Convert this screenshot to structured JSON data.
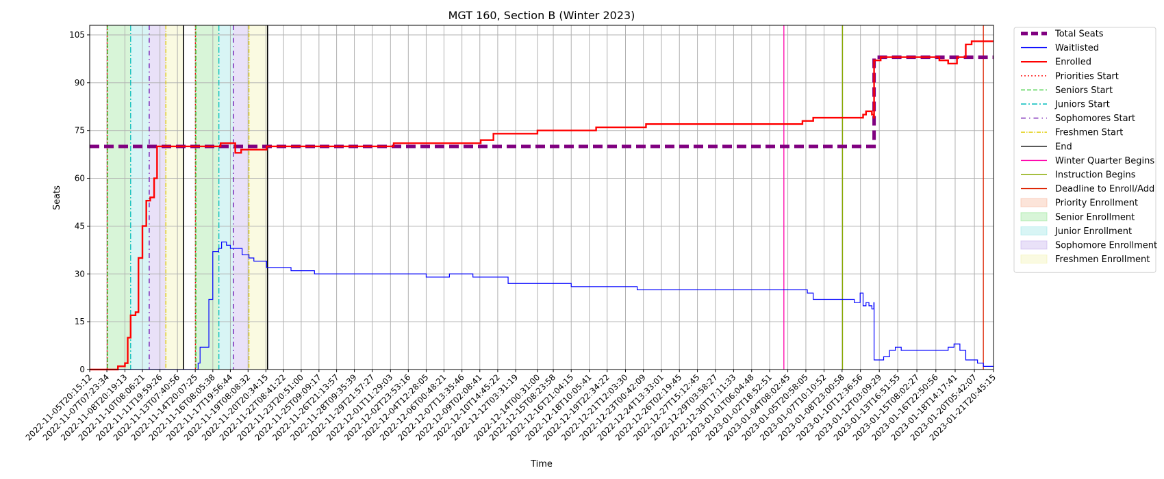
{
  "chart_data": {
    "type": "line",
    "title": "MGT 160, Section B (Winter 2023)",
    "xlabel": "Time",
    "ylabel": "Seats",
    "x_type": "datetime",
    "xlim": [
      "2022-11-05T20:15:12",
      "2023-01-21T20:45:15"
    ],
    "ylim": [
      0,
      108
    ],
    "yticks": [
      0,
      15,
      30,
      45,
      60,
      75,
      90,
      105
    ],
    "xticks": [
      "2022-11-05T20:15:12",
      "2022-11-07T07:23:34",
      "2022-11-08T20:19:13",
      "2022-11-10T08:06:21",
      "2022-11-11T19:59:26",
      "2022-11-13T07:40:56",
      "2022-11-14T20:07:25",
      "2022-11-16T08:05:38",
      "2022-11-17T19:56:44",
      "2022-11-19T08:08:32",
      "2022-11-20T20:34:15",
      "2022-11-22T08:41:22",
      "2022-11-23T20:51:00",
      "2022-11-25T09:09:17",
      "2022-11-26T21:13:57",
      "2022-11-28T09:35:39",
      "2022-11-29T21:57:27",
      "2022-12-01T11:29:03",
      "2022-12-02T23:53:16",
      "2022-12-04T12:28:05",
      "2022-12-06T00:48:21",
      "2022-12-07T13:35:46",
      "2022-12-09T02:08:41",
      "2022-12-10T14:45:22",
      "2022-12-12T03:31:19",
      "2022-12-14T00:31:00",
      "2022-12-15T08:23:58",
      "2022-12-16T21:04:15",
      "2022-12-18T10:05:41",
      "2022-12-19T22:34:22",
      "2022-12-21T12:03:30",
      "2022-12-23T00:42:09",
      "2022-12-24T13:33:01",
      "2022-12-26T02:19:45",
      "2022-12-27T15:12:45",
      "2022-12-29T03:58:27",
      "2022-12-30T17:11:33",
      "2023-01-01T06:04:48",
      "2023-01-02T18:52:51",
      "2023-01-04T08:02:45",
      "2023-01-05T20:58:05",
      "2023-01-07T10:10:52",
      "2023-01-08T23:00:58",
      "2023-01-10T12:36:56",
      "2023-01-12T03:09:29",
      "2023-01-13T16:51:55",
      "2023-01-15T08:02:27",
      "2023-01-16T22:50:56",
      "2023-01-18T14:17:41",
      "2023-01-20T05:42:07",
      "2023-01-21T20:45:15"
    ],
    "grid": true,
    "legend_position": "outside-right",
    "series": [
      {
        "name": "Total Seats",
        "color": "#800080",
        "style": "dashed-thick",
        "points": [
          [
            "2022-11-05T20:15:12",
            70
          ],
          [
            "2023-01-11T16:00:00",
            70
          ],
          [
            "2023-01-11T16:30:00",
            98
          ],
          [
            "2023-01-21T20:45:15",
            98
          ]
        ]
      },
      {
        "name": "Waitlisted",
        "color": "#0000ff",
        "style": "solid-thin",
        "points": [
          [
            "2022-11-05T20:15:12",
            0
          ],
          [
            "2022-11-14T20:07:25",
            0
          ],
          [
            "2022-11-15T02:00:00",
            2
          ],
          [
            "2022-11-15T06:00:00",
            7
          ],
          [
            "2022-11-15T18:00:00",
            7
          ],
          [
            "2022-11-16T00:00:00",
            22
          ],
          [
            "2022-11-16T08:00:00",
            37
          ],
          [
            "2022-11-16T20:00:00",
            38
          ],
          [
            "2022-11-17T02:00:00",
            40
          ],
          [
            "2022-11-17T12:00:00",
            39
          ],
          [
            "2022-11-17T20:00:00",
            38
          ],
          [
            "2022-11-18T20:00:00",
            36
          ],
          [
            "2022-11-19T10:00:00",
            35
          ],
          [
            "2022-11-19T20:00:00",
            34
          ],
          [
            "2022-11-20T20:34:15",
            34
          ],
          [
            "2022-11-20T22:00:00",
            32
          ],
          [
            "2022-11-23T00:00:00",
            31
          ],
          [
            "2022-11-25T00:00:00",
            30
          ],
          [
            "2022-12-04T00:00:00",
            30
          ],
          [
            "2022-12-04T12:28:05",
            29
          ],
          [
            "2022-12-06T12:00:00",
            30
          ],
          [
            "2022-12-08T12:00:00",
            29
          ],
          [
            "2022-12-11T12:00:00",
            27
          ],
          [
            "2022-12-16T21:04:15",
            26
          ],
          [
            "2022-12-22T12:00:00",
            25
          ],
          [
            "2023-01-05T12:00:00",
            25
          ],
          [
            "2023-01-06T00:00:00",
            24
          ],
          [
            "2023-01-06T12:00:00",
            22
          ],
          [
            "2023-01-09T06:00:00",
            22
          ],
          [
            "2023-01-10T00:00:00",
            21
          ],
          [
            "2023-01-10T12:00:00",
            24
          ],
          [
            "2023-01-10T18:00:00",
            20
          ],
          [
            "2023-01-11T00:00:00",
            21
          ],
          [
            "2023-01-11T06:00:00",
            20
          ],
          [
            "2023-01-11T12:00:00",
            19
          ],
          [
            "2023-01-11T16:00:00",
            21
          ],
          [
            "2023-01-11T16:30:00",
            3
          ],
          [
            "2023-01-12T12:00:00",
            4
          ],
          [
            "2023-01-13T00:00:00",
            6
          ],
          [
            "2023-01-13T12:00:00",
            7
          ],
          [
            "2023-01-14T00:00:00",
            6
          ],
          [
            "2023-01-18T00:00:00",
            7
          ],
          [
            "2023-01-18T12:00:00",
            8
          ],
          [
            "2023-01-19T00:00:00",
            6
          ],
          [
            "2023-01-19T12:00:00",
            3
          ],
          [
            "2023-01-20T12:00:00",
            2
          ],
          [
            "2023-01-21T00:00:00",
            1
          ],
          [
            "2023-01-21T20:45:15",
            1
          ]
        ]
      },
      {
        "name": "Enrolled",
        "color": "#ff0000",
        "style": "solid-thick",
        "points": [
          [
            "2022-11-05T20:15:12",
            0
          ],
          [
            "2022-11-07T23:00:00",
            0
          ],
          [
            "2022-11-08T06:00:00",
            1
          ],
          [
            "2022-11-08T20:19:13",
            2
          ],
          [
            "2022-11-09T02:00:00",
            10
          ],
          [
            "2022-11-09T08:00:00",
            17
          ],
          [
            "2022-11-09T18:00:00",
            18
          ],
          [
            "2022-11-10T00:00:00",
            35
          ],
          [
            "2022-11-10T08:06:21",
            45
          ],
          [
            "2022-11-10T16:00:00",
            53
          ],
          [
            "2022-11-11T00:00:00",
            54
          ],
          [
            "2022-11-11T08:00:00",
            60
          ],
          [
            "2022-11-11T14:00:00",
            70
          ],
          [
            "2022-11-16T20:00:00",
            70
          ],
          [
            "2022-11-17T00:00:00",
            71
          ],
          [
            "2022-11-18T00:00:00",
            71
          ],
          [
            "2022-11-18T06:00:00",
            68
          ],
          [
            "2022-11-18T18:00:00",
            69
          ],
          [
            "2022-11-20T20:34:15",
            69
          ],
          [
            "2022-11-20T22:00:00",
            70
          ],
          [
            "2022-12-01T12:00:00",
            70
          ],
          [
            "2022-12-01T18:00:00",
            71
          ],
          [
            "2022-12-09T04:00:00",
            72
          ],
          [
            "2022-12-10T06:00:00",
            74
          ],
          [
            "2022-12-14T00:00:00",
            75
          ],
          [
            "2022-12-19T00:00:00",
            76
          ],
          [
            "2022-12-23T06:00:00",
            77
          ],
          [
            "2023-01-05T06:00:00",
            77
          ],
          [
            "2023-01-05T14:00:00",
            78
          ],
          [
            "2023-01-06T12:00:00",
            79
          ],
          [
            "2023-01-10T00:00:00",
            79
          ],
          [
            "2023-01-10T18:00:00",
            80
          ],
          [
            "2023-01-11T00:00:00",
            81
          ],
          [
            "2023-01-11T12:00:00",
            80
          ],
          [
            "2023-01-11T16:00:00",
            79
          ],
          [
            "2023-01-11T16:30:00",
            97
          ],
          [
            "2023-01-12T06:00:00",
            98
          ],
          [
            "2023-01-17T00:00:00",
            98
          ],
          [
            "2023-01-17T06:00:00",
            97
          ],
          [
            "2023-01-18T00:00:00",
            96
          ],
          [
            "2023-01-18T18:00:00",
            98
          ],
          [
            "2023-01-19T12:00:00",
            102
          ],
          [
            "2023-01-20T00:00:00",
            103
          ],
          [
            "2023-01-21T20:45:15",
            103
          ]
        ]
      }
    ],
    "vertical_lines": [
      {
        "name": "Priorities Start",
        "color": "#ff0000",
        "style": "dotted",
        "x": [
          "2022-11-07T08:00:00",
          "2022-11-14T20:30:00"
        ]
      },
      {
        "name": "Seniors Start",
        "color": "#33cc33",
        "style": "dashed",
        "x": [
          "2022-11-07T09:00:00",
          "2022-11-14T21:30:00"
        ]
      },
      {
        "name": "Juniors Start",
        "color": "#00bbbb",
        "style": "dashdot",
        "x": [
          "2022-11-09T08:00:00",
          "2022-11-16T20:30:00"
        ]
      },
      {
        "name": "Sophomores Start",
        "color": "#6a0dad",
        "style": "loosely-dashdotted",
        "x": [
          "2022-11-10T22:00:00",
          "2022-11-18T02:00:00"
        ]
      },
      {
        "name": "Freshmen Start",
        "color": "#e0cc00",
        "style": "dashdot-thin",
        "x": [
          "2022-11-12T08:00:00",
          "2022-11-19T10:00:00"
        ]
      },
      {
        "name": "End",
        "color": "#000000",
        "style": "solid",
        "x": [
          "2022-11-13T20:00:00",
          "2022-11-21T00:00:00"
        ]
      },
      {
        "name": "Winter Quarter Begins",
        "color": "#ff00aa",
        "style": "solid",
        "x": [
          "2023-01-04T00:00:00"
        ]
      },
      {
        "name": "Instruction Begins",
        "color": "#88aa00",
        "style": "solid",
        "x": [
          "2023-01-09T00:00:00"
        ]
      },
      {
        "name": "Deadline to Enroll/Add",
        "color": "#dd2200",
        "style": "solid",
        "x": [
          "2023-01-20T23:59:00"
        ]
      }
    ],
    "shaded_regions": [
      {
        "name": "Priority Enrollment",
        "color": "#f4a582",
        "ranges": [
          [
            "2022-11-07T08:00:00",
            "2022-11-07T09:00:00"
          ],
          [
            "2022-11-14T20:30:00",
            "2022-11-14T21:30:00"
          ]
        ]
      },
      {
        "name": "Senior Enrollment",
        "color": "#7fdf7f",
        "ranges": [
          [
            "2022-11-07T09:00:00",
            "2022-11-09T08:00:00"
          ],
          [
            "2022-11-14T21:30:00",
            "2022-11-16T20:30:00"
          ]
        ]
      },
      {
        "name": "Junior Enrollment",
        "color": "#7fdfdf",
        "ranges": [
          [
            "2022-11-09T08:00:00",
            "2022-11-10T22:00:00"
          ],
          [
            "2022-11-16T20:30:00",
            "2022-11-18T02:00:00"
          ]
        ]
      },
      {
        "name": "Sophomore Enrollment",
        "color": "#b59ce8",
        "ranges": [
          [
            "2022-11-10T22:00:00",
            "2022-11-12T08:00:00"
          ],
          [
            "2022-11-18T02:00:00",
            "2022-11-19T10:00:00"
          ]
        ]
      },
      {
        "name": "Freshmen Enrollment",
        "color": "#eded9a",
        "ranges": [
          [
            "2022-11-12T08:00:00",
            "2022-11-13T20:00:00"
          ],
          [
            "2022-11-19T10:00:00",
            "2022-11-21T00:00:00"
          ]
        ]
      }
    ],
    "legend": [
      {
        "label": "Total Seats",
        "kind": "line",
        "color": "#800080",
        "style": "dashed-thick"
      },
      {
        "label": "Waitlisted",
        "kind": "line",
        "color": "#0000ff",
        "style": "solid-thin"
      },
      {
        "label": "Enrolled",
        "kind": "line",
        "color": "#ff0000",
        "style": "solid-thick"
      },
      {
        "label": "Priorities Start",
        "kind": "line",
        "color": "#ff0000",
        "style": "dotted"
      },
      {
        "label": "Seniors Start",
        "kind": "line",
        "color": "#33cc33",
        "style": "dashed"
      },
      {
        "label": "Juniors Start",
        "kind": "line",
        "color": "#00bbbb",
        "style": "dashdot"
      },
      {
        "label": "Sophomores Start",
        "kind": "line",
        "color": "#6a0dad",
        "style": "loosely-dashdotted"
      },
      {
        "label": "Freshmen Start",
        "kind": "line",
        "color": "#e0cc00",
        "style": "dashdot-thin"
      },
      {
        "label": "End",
        "kind": "line",
        "color": "#000000",
        "style": "solid"
      },
      {
        "label": "Winter Quarter Begins",
        "kind": "line",
        "color": "#ff00aa",
        "style": "solid"
      },
      {
        "label": "Instruction Begins",
        "kind": "line",
        "color": "#88aa00",
        "style": "solid"
      },
      {
        "label": "Deadline to Enroll/Add",
        "kind": "line",
        "color": "#dd2200",
        "style": "solid"
      },
      {
        "label": "Priority Enrollment",
        "kind": "patch",
        "color": "#f4a582"
      },
      {
        "label": "Senior Enrollment",
        "kind": "patch",
        "color": "#7fdf7f"
      },
      {
        "label": "Junior Enrollment",
        "kind": "patch",
        "color": "#7fdfdf"
      },
      {
        "label": "Sophomore Enrollment",
        "kind": "patch",
        "color": "#b59ce8"
      },
      {
        "label": "Freshmen Enrollment",
        "kind": "patch",
        "color": "#eded9a"
      }
    ]
  }
}
